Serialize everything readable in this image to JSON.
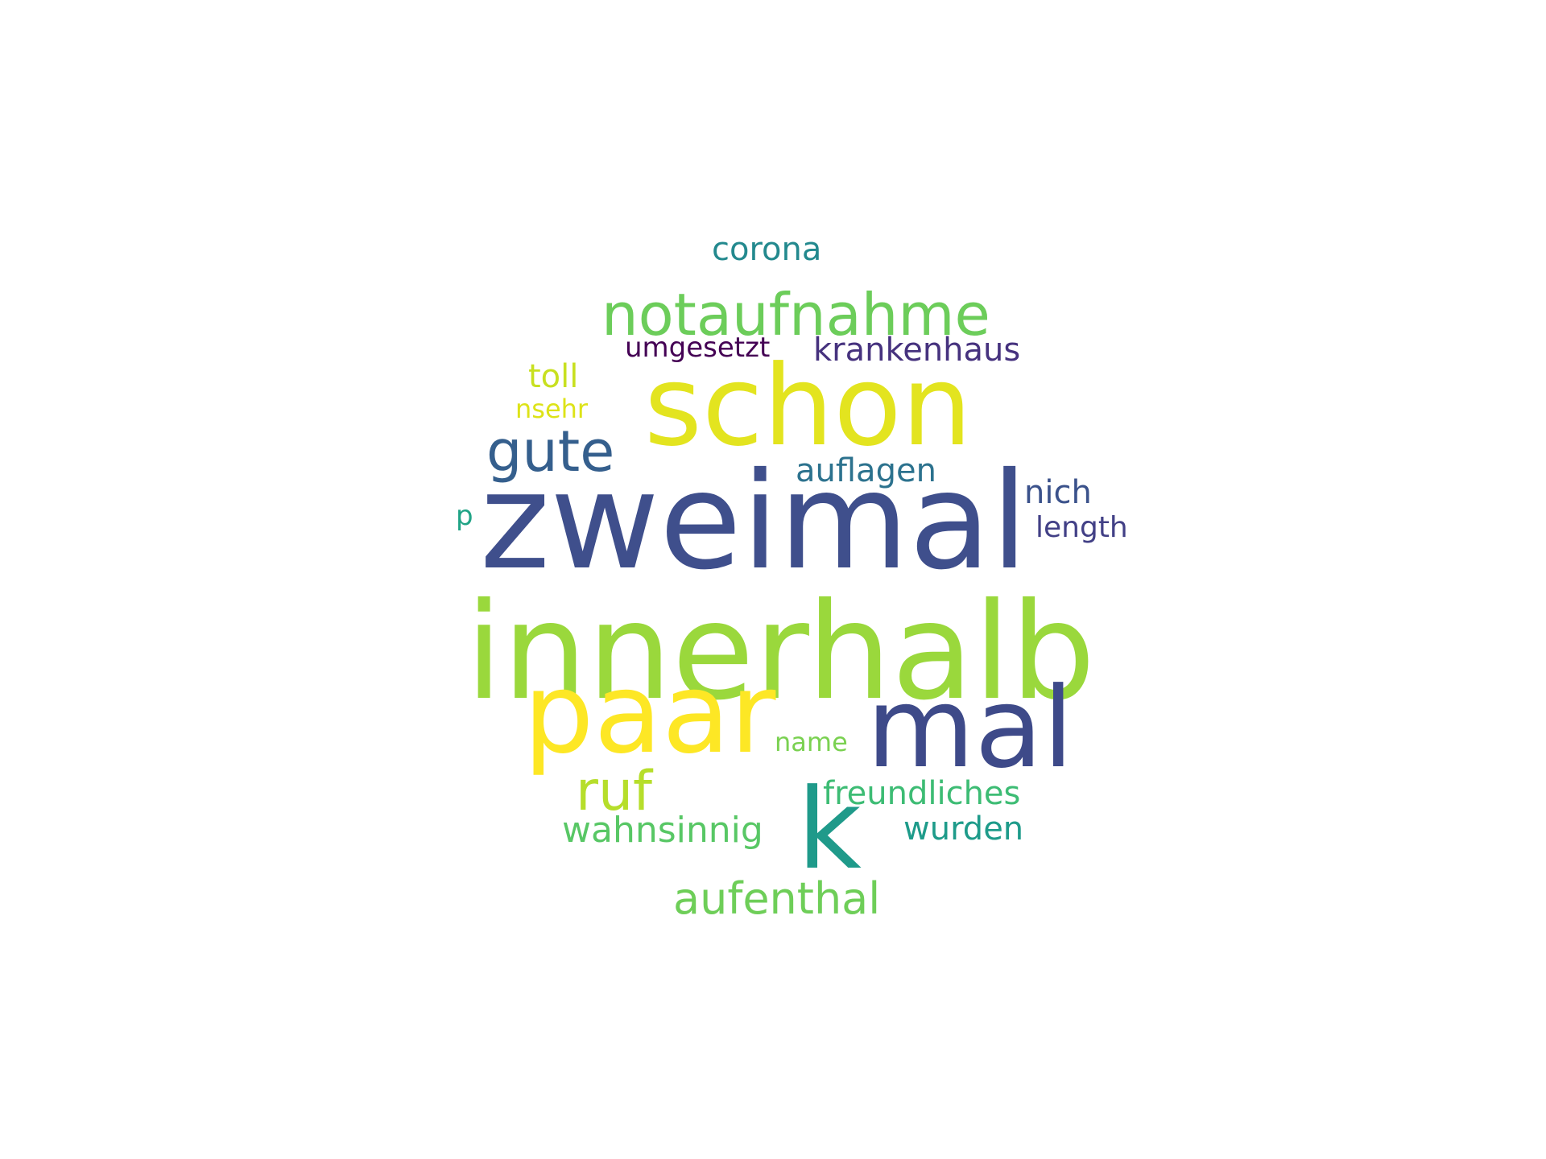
{
  "words": [
    {
      "text": "zweimal",
      "color": "#3f4f8c"
    },
    {
      "text": "innerhalb",
      "color": "#9ad83c"
    },
    {
      "text": "schon",
      "color": "#e3e41f"
    },
    {
      "text": "paar",
      "color": "#fde725"
    },
    {
      "text": "mal",
      "color": "#3e4a89"
    },
    {
      "text": "k",
      "color": "#1f9a8a"
    },
    {
      "text": "notaufnahme",
      "color": "#6ccd5a"
    },
    {
      "text": "gute",
      "color": "#355f8d"
    },
    {
      "text": "ruf",
      "color": "#b6de2b"
    },
    {
      "text": "aufenthal",
      "color": "#6ece58"
    },
    {
      "text": "wahnsinnig",
      "color": "#58c765"
    },
    {
      "text": "corona",
      "color": "#23898e"
    },
    {
      "text": "krankenhaus",
      "color": "#46327e"
    },
    {
      "text": "umgesetzt",
      "color": "#440154"
    },
    {
      "text": "toll",
      "color": "#c8e020"
    },
    {
      "text": "nsehr",
      "color": "#dde318"
    },
    {
      "text": "auflagen",
      "color": "#2c728e"
    },
    {
      "text": "nich",
      "color": "#3b528b"
    },
    {
      "text": "length",
      "color": "#424086"
    },
    {
      "text": "p",
      "color": "#20a486"
    },
    {
      "text": "name",
      "color": "#7ad151"
    },
    {
      "text": "freundliches",
      "color": "#3dbc74"
    },
    {
      "text": "wurden",
      "color": "#1e9b8a"
    }
  ]
}
